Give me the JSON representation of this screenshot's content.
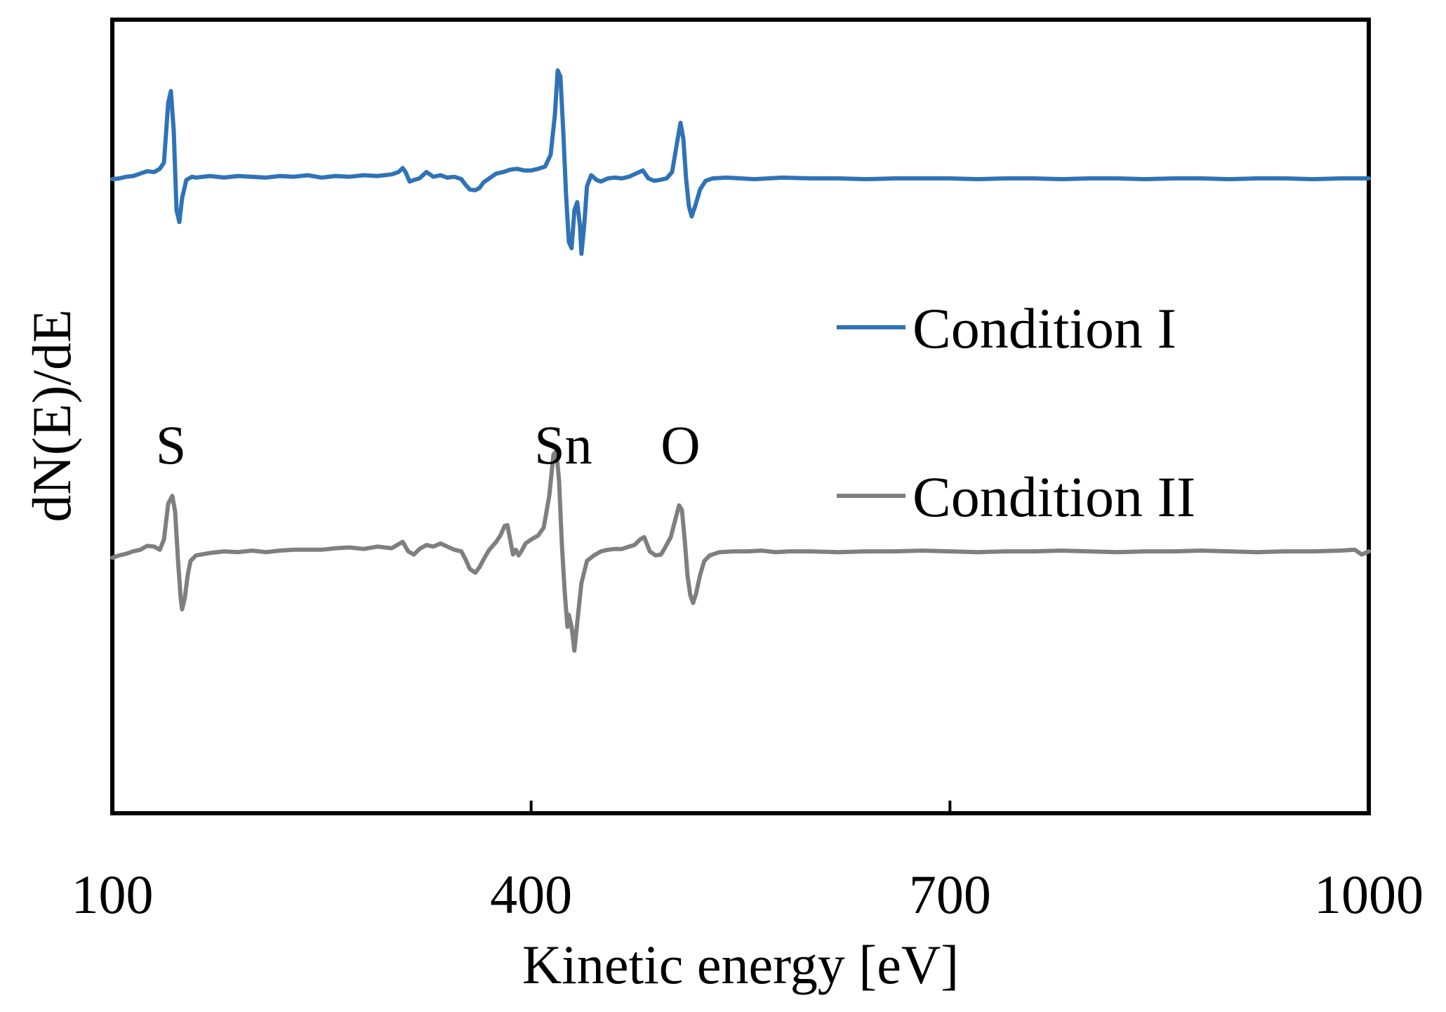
{
  "chart_data": {
    "type": "line",
    "title": "",
    "xlabel": "Kinetic energy [eV]",
    "ylabel": "dN(E)/dE",
    "xlim": [
      100,
      1000
    ],
    "ylim": [
      0,
      1
    ],
    "x_ticks": [
      100,
      400,
      700,
      1000
    ],
    "x_tick_labels": [
      "100",
      "400",
      "700",
      "1000"
    ],
    "y_ticks_shown": false,
    "grid": false,
    "legend": {
      "placement": "right"
    },
    "annotations": [
      {
        "text": "S",
        "x": 142
      },
      {
        "text": "Sn",
        "x": 423
      },
      {
        "text": "O",
        "x": 507
      }
    ],
    "series": [
      {
        "name": "Condition I",
        "color": "#2f73b6",
        "points": [
          [
            100,
            0.799
          ],
          [
            105,
            0.8
          ],
          [
            110,
            0.802
          ],
          [
            115,
            0.803
          ],
          [
            120,
            0.806
          ],
          [
            125,
            0.809
          ],
          [
            130,
            0.808
          ],
          [
            134,
            0.812
          ],
          [
            137,
            0.82
          ],
          [
            140,
            0.895
          ],
          [
            142,
            0.91
          ],
          [
            144,
            0.86
          ],
          [
            146,
            0.76
          ],
          [
            148,
            0.745
          ],
          [
            150,
            0.775
          ],
          [
            153,
            0.798
          ],
          [
            157,
            0.802
          ],
          [
            160,
            0.801
          ],
          [
            170,
            0.803
          ],
          [
            180,
            0.801
          ],
          [
            190,
            0.803
          ],
          [
            200,
            0.802
          ],
          [
            210,
            0.801
          ],
          [
            220,
            0.803
          ],
          [
            230,
            0.802
          ],
          [
            240,
            0.804
          ],
          [
            250,
            0.801
          ],
          [
            260,
            0.803
          ],
          [
            270,
            0.802
          ],
          [
            280,
            0.804
          ],
          [
            290,
            0.803
          ],
          [
            300,
            0.805
          ],
          [
            305,
            0.808
          ],
          [
            308,
            0.813
          ],
          [
            310,
            0.808
          ],
          [
            313,
            0.796
          ],
          [
            316,
            0.798
          ],
          [
            320,
            0.8
          ],
          [
            325,
            0.808
          ],
          [
            330,
            0.802
          ],
          [
            335,
            0.804
          ],
          [
            340,
            0.801
          ],
          [
            345,
            0.802
          ],
          [
            350,
            0.799
          ],
          [
            353,
            0.792
          ],
          [
            356,
            0.786
          ],
          [
            360,
            0.785
          ],
          [
            363,
            0.788
          ],
          [
            366,
            0.795
          ],
          [
            370,
            0.8
          ],
          [
            375,
            0.806
          ],
          [
            380,
            0.808
          ],
          [
            385,
            0.811
          ],
          [
            390,
            0.812
          ],
          [
            395,
            0.81
          ],
          [
            400,
            0.81
          ],
          [
            405,
            0.812
          ],
          [
            410,
            0.815
          ],
          [
            414,
            0.83
          ],
          [
            417,
            0.88
          ],
          [
            419,
            0.936
          ],
          [
            421,
            0.928
          ],
          [
            423,
            0.86
          ],
          [
            425,
            0.78
          ],
          [
            427,
            0.72
          ],
          [
            429,
            0.712
          ],
          [
            431,
            0.76
          ],
          [
            433,
            0.77
          ],
          [
            435,
            0.74
          ],
          [
            436,
            0.705
          ],
          [
            438,
            0.74
          ],
          [
            440,
            0.79
          ],
          [
            443,
            0.804
          ],
          [
            447,
            0.798
          ],
          [
            450,
            0.796
          ],
          [
            455,
            0.8
          ],
          [
            460,
            0.801
          ],
          [
            465,
            0.8
          ],
          [
            470,
            0.802
          ],
          [
            475,
            0.806
          ],
          [
            480,
            0.81
          ],
          [
            484,
            0.8
          ],
          [
            488,
            0.797
          ],
          [
            492,
            0.798
          ],
          [
            497,
            0.8
          ],
          [
            501,
            0.808
          ],
          [
            505,
            0.85
          ],
          [
            507,
            0.87
          ],
          [
            509,
            0.85
          ],
          [
            511,
            0.8
          ],
          [
            513,
            0.765
          ],
          [
            515,
            0.752
          ],
          [
            518,
            0.768
          ],
          [
            521,
            0.786
          ],
          [
            525,
            0.797
          ],
          [
            530,
            0.8
          ],
          [
            540,
            0.801
          ],
          [
            550,
            0.8
          ],
          [
            560,
            0.799
          ],
          [
            570,
            0.8
          ],
          [
            580,
            0.801
          ],
          [
            600,
            0.8
          ],
          [
            620,
            0.8
          ],
          [
            640,
            0.799
          ],
          [
            660,
            0.8
          ],
          [
            680,
            0.8
          ],
          [
            700,
            0.8
          ],
          [
            720,
            0.799
          ],
          [
            740,
            0.8
          ],
          [
            760,
            0.8
          ],
          [
            780,
            0.799
          ],
          [
            800,
            0.8
          ],
          [
            820,
            0.8
          ],
          [
            840,
            0.799
          ],
          [
            860,
            0.8
          ],
          [
            880,
            0.8
          ],
          [
            900,
            0.799
          ],
          [
            920,
            0.8
          ],
          [
            940,
            0.8
          ],
          [
            960,
            0.799
          ],
          [
            980,
            0.8
          ],
          [
            1000,
            0.8
          ]
        ]
      },
      {
        "name": "Condition II",
        "color": "#7f7f7f",
        "points": [
          [
            100,
            0.322
          ],
          [
            105,
            0.325
          ],
          [
            110,
            0.327
          ],
          [
            115,
            0.33
          ],
          [
            120,
            0.332
          ],
          [
            125,
            0.337
          ],
          [
            130,
            0.336
          ],
          [
            134,
            0.332
          ],
          [
            137,
            0.345
          ],
          [
            140,
            0.39
          ],
          [
            143,
            0.4
          ],
          [
            145,
            0.38
          ],
          [
            147,
            0.32
          ],
          [
            149,
            0.27
          ],
          [
            150,
            0.257
          ],
          [
            152,
            0.272
          ],
          [
            154,
            0.3
          ],
          [
            156,
            0.318
          ],
          [
            160,
            0.325
          ],
          [
            170,
            0.328
          ],
          [
            180,
            0.33
          ],
          [
            190,
            0.329
          ],
          [
            200,
            0.331
          ],
          [
            210,
            0.329
          ],
          [
            220,
            0.331
          ],
          [
            230,
            0.332
          ],
          [
            240,
            0.332
          ],
          [
            250,
            0.332
          ],
          [
            260,
            0.334
          ],
          [
            270,
            0.335
          ],
          [
            280,
            0.333
          ],
          [
            290,
            0.336
          ],
          [
            300,
            0.334
          ],
          [
            304,
            0.338
          ],
          [
            308,
            0.342
          ],
          [
            312,
            0.33
          ],
          [
            316,
            0.326
          ],
          [
            320,
            0.333
          ],
          [
            325,
            0.338
          ],
          [
            330,
            0.336
          ],
          [
            335,
            0.34
          ],
          [
            340,
            0.336
          ],
          [
            345,
            0.332
          ],
          [
            350,
            0.33
          ],
          [
            353,
            0.32
          ],
          [
            356,
            0.308
          ],
          [
            360,
            0.303
          ],
          [
            363,
            0.31
          ],
          [
            366,
            0.32
          ],
          [
            370,
            0.332
          ],
          [
            375,
            0.342
          ],
          [
            378,
            0.35
          ],
          [
            381,
            0.362
          ],
          [
            383,
            0.363
          ],
          [
            385,
            0.345
          ],
          [
            387,
            0.326
          ],
          [
            389,
            0.332
          ],
          [
            391,
            0.325
          ],
          [
            393,
            0.33
          ],
          [
            396,
            0.34
          ],
          [
            400,
            0.345
          ],
          [
            405,
            0.35
          ],
          [
            409,
            0.36
          ],
          [
            413,
            0.4
          ],
          [
            416,
            0.452
          ],
          [
            418,
            0.456
          ],
          [
            420,
            0.42
          ],
          [
            422,
            0.34
          ],
          [
            424,
            0.28
          ],
          [
            426,
            0.235
          ],
          [
            427,
            0.25
          ],
          [
            429,
            0.235
          ],
          [
            431,
            0.205
          ],
          [
            433,
            0.24
          ],
          [
            436,
            0.29
          ],
          [
            440,
            0.318
          ],
          [
            445,
            0.325
          ],
          [
            450,
            0.33
          ],
          [
            455,
            0.332
          ],
          [
            460,
            0.333
          ],
          [
            465,
            0.333
          ],
          [
            470,
            0.336
          ],
          [
            474,
            0.338
          ],
          [
            478,
            0.345
          ],
          [
            481,
            0.348
          ],
          [
            485,
            0.33
          ],
          [
            489,
            0.325
          ],
          [
            493,
            0.326
          ],
          [
            496,
            0.335
          ],
          [
            500,
            0.348
          ],
          [
            504,
            0.375
          ],
          [
            506,
            0.388
          ],
          [
            508,
            0.382
          ],
          [
            510,
            0.345
          ],
          [
            512,
            0.3
          ],
          [
            514,
            0.275
          ],
          [
            516,
            0.265
          ],
          [
            518,
            0.276
          ],
          [
            521,
            0.3
          ],
          [
            524,
            0.318
          ],
          [
            528,
            0.325
          ],
          [
            535,
            0.329
          ],
          [
            545,
            0.33
          ],
          [
            555,
            0.33
          ],
          [
            565,
            0.331
          ],
          [
            575,
            0.329
          ],
          [
            585,
            0.33
          ],
          [
            600,
            0.33
          ],
          [
            620,
            0.329
          ],
          [
            640,
            0.33
          ],
          [
            660,
            0.33
          ],
          [
            680,
            0.331
          ],
          [
            700,
            0.33
          ],
          [
            720,
            0.329
          ],
          [
            740,
            0.33
          ],
          [
            760,
            0.33
          ],
          [
            780,
            0.331
          ],
          [
            800,
            0.33
          ],
          [
            820,
            0.329
          ],
          [
            840,
            0.33
          ],
          [
            860,
            0.33
          ],
          [
            880,
            0.331
          ],
          [
            900,
            0.33
          ],
          [
            920,
            0.329
          ],
          [
            940,
            0.33
          ],
          [
            960,
            0.33
          ],
          [
            980,
            0.331
          ],
          [
            990,
            0.332
          ],
          [
            995,
            0.326
          ],
          [
            1000,
            0.33
          ]
        ]
      }
    ]
  }
}
